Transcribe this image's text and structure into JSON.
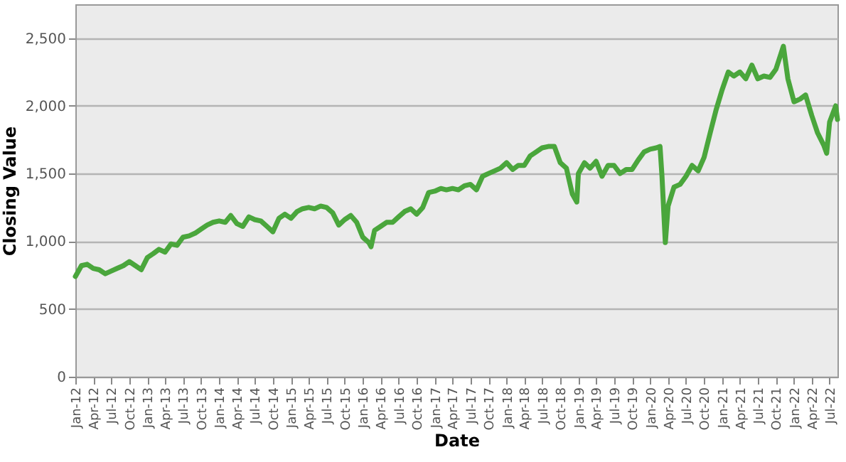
{
  "chart_data": {
    "type": "line",
    "xlabel": "Date",
    "ylabel": "Closing Value",
    "x": [
      "2012-01-01",
      "2012-02-01",
      "2012-03-01",
      "2012-04-01",
      "2012-05-01",
      "2012-06-01",
      "2012-07-01",
      "2012-08-01",
      "2012-09-01",
      "2012-10-01",
      "2012-11-01",
      "2012-12-01",
      "2013-01-01",
      "2013-02-01",
      "2013-03-01",
      "2013-04-01",
      "2013-05-01",
      "2013-06-01",
      "2013-07-01",
      "2013-08-01",
      "2013-09-01",
      "2013-10-01",
      "2013-11-01",
      "2013-12-01",
      "2014-01-01",
      "2014-02-01",
      "2014-03-01",
      "2014-04-01",
      "2014-05-01",
      "2014-06-01",
      "2014-07-01",
      "2014-08-01",
      "2014-09-01",
      "2014-10-01",
      "2014-11-01",
      "2014-12-01",
      "2015-01-01",
      "2015-02-01",
      "2015-03-01",
      "2015-04-01",
      "2015-05-01",
      "2015-06-01",
      "2015-07-01",
      "2015-08-01",
      "2015-09-01",
      "2015-10-01",
      "2015-11-01",
      "2015-12-01",
      "2016-01-01",
      "2016-02-01",
      "2016-02-12",
      "2016-03-01",
      "2016-04-01",
      "2016-05-01",
      "2016-06-01",
      "2016-07-01",
      "2016-08-01",
      "2016-09-01",
      "2016-10-01",
      "2016-11-01",
      "2016-12-01",
      "2017-01-01",
      "2017-02-01",
      "2017-03-01",
      "2017-04-01",
      "2017-05-01",
      "2017-06-01",
      "2017-07-01",
      "2017-08-01",
      "2017-09-01",
      "2017-10-01",
      "2017-11-01",
      "2017-12-01",
      "2018-01-01",
      "2018-02-01",
      "2018-03-01",
      "2018-04-01",
      "2018-05-01",
      "2018-06-01",
      "2018-07-01",
      "2018-08-01",
      "2018-09-01",
      "2018-10-01",
      "2018-11-01",
      "2018-12-01",
      "2018-12-24",
      "2019-01-01",
      "2019-02-01",
      "2019-03-01",
      "2019-04-01",
      "2019-05-01",
      "2019-06-01",
      "2019-07-01",
      "2019-08-01",
      "2019-09-01",
      "2019-10-01",
      "2019-11-01",
      "2019-12-01",
      "2020-01-01",
      "2020-02-01",
      "2020-02-20",
      "2020-03-01",
      "2020-03-18",
      "2020-04-01",
      "2020-05-01",
      "2020-06-01",
      "2020-07-01",
      "2020-08-01",
      "2020-09-01",
      "2020-10-01",
      "2020-11-01",
      "2020-12-01",
      "2021-01-01",
      "2021-02-01",
      "2021-03-01",
      "2021-04-01",
      "2021-05-01",
      "2021-06-01",
      "2021-07-01",
      "2021-08-01",
      "2021-09-01",
      "2021-10-01",
      "2021-11-08",
      "2021-12-01",
      "2022-01-01",
      "2022-02-01",
      "2022-03-01",
      "2022-04-01",
      "2022-05-01",
      "2022-06-01",
      "2022-06-16",
      "2022-07-01",
      "2022-08-01",
      "2022-08-10"
    ],
    "series": [
      {
        "color": "#4aa63c",
        "values": [
          740,
          820,
          830,
          800,
          790,
          760,
          780,
          800,
          820,
          850,
          820,
          790,
          880,
          910,
          940,
          920,
          980,
          970,
          1030,
          1040,
          1060,
          1090,
          1120,
          1140,
          1150,
          1140,
          1190,
          1130,
          1110,
          1180,
          1160,
          1150,
          1110,
          1070,
          1170,
          1200,
          1170,
          1220,
          1240,
          1250,
          1240,
          1260,
          1250,
          1210,
          1120,
          1160,
          1190,
          1140,
          1030,
          990,
          960,
          1080,
          1110,
          1140,
          1140,
          1180,
          1220,
          1240,
          1200,
          1250,
          1360,
          1370,
          1390,
          1380,
          1390,
          1380,
          1410,
          1420,
          1380,
          1480,
          1500,
          1520,
          1540,
          1580,
          1530,
          1560,
          1560,
          1630,
          1660,
          1690,
          1700,
          1700,
          1580,
          1540,
          1350,
          1290,
          1500,
          1580,
          1540,
          1590,
          1480,
          1560,
          1560,
          1500,
          1530,
          1530,
          1600,
          1660,
          1680,
          1690,
          1700,
          1480,
          990,
          1260,
          1400,
          1420,
          1480,
          1560,
          1520,
          1620,
          1800,
          1970,
          2120,
          2250,
          2220,
          2250,
          2200,
          2300,
          2200,
          2220,
          2210,
          2270,
          2440,
          2200,
          2030,
          2050,
          2080,
          1930,
          1800,
          1710,
          1650,
          1880,
          2000,
          1900
        ]
      }
    ],
    "ylim": [
      0,
      2750
    ],
    "yticks": [
      {
        "value": 0,
        "label": "0"
      },
      {
        "value": 500,
        "label": "500"
      },
      {
        "value": 1000,
        "label": "1,000"
      },
      {
        "value": 1500,
        "label": "1,500"
      },
      {
        "value": 2000,
        "label": "2,000"
      },
      {
        "value": 2500,
        "label": "2,500"
      }
    ],
    "xlim": [
      "2012-01-01",
      "2022-08-10"
    ],
    "xticks": [
      {
        "value": "2012-01-01",
        "label": "Jan-12"
      },
      {
        "value": "2012-04-01",
        "label": "Apr-12"
      },
      {
        "value": "2012-07-01",
        "label": "Jul-12"
      },
      {
        "value": "2012-10-01",
        "label": "Oct-12"
      },
      {
        "value": "2013-01-01",
        "label": "Jan-13"
      },
      {
        "value": "2013-04-01",
        "label": "Apr-13"
      },
      {
        "value": "2013-07-01",
        "label": "Jul-13"
      },
      {
        "value": "2013-10-01",
        "label": "Oct-13"
      },
      {
        "value": "2014-01-01",
        "label": "Jan-14"
      },
      {
        "value": "2014-04-01",
        "label": "Apr-14"
      },
      {
        "value": "2014-07-01",
        "label": "Jul-14"
      },
      {
        "value": "2014-10-01",
        "label": "Oct-14"
      },
      {
        "value": "2015-01-01",
        "label": "Jan-15"
      },
      {
        "value": "2015-04-01",
        "label": "Apr-15"
      },
      {
        "value": "2015-07-01",
        "label": "Jul-15"
      },
      {
        "value": "2015-10-01",
        "label": "Oct-15"
      },
      {
        "value": "2016-01-01",
        "label": "Jan-16"
      },
      {
        "value": "2016-04-01",
        "label": "Apr-16"
      },
      {
        "value": "2016-07-01",
        "label": "Jul-16"
      },
      {
        "value": "2016-10-01",
        "label": "Oct-16"
      },
      {
        "value": "2017-01-01",
        "label": "Jan-17"
      },
      {
        "value": "2017-04-01",
        "label": "Apr-17"
      },
      {
        "value": "2017-07-01",
        "label": "Jul-17"
      },
      {
        "value": "2017-10-01",
        "label": "Oct-17"
      },
      {
        "value": "2018-01-01",
        "label": "Jan-18"
      },
      {
        "value": "2018-04-01",
        "label": "Apr-18"
      },
      {
        "value": "2018-07-01",
        "label": "Jul-18"
      },
      {
        "value": "2018-10-01",
        "label": "Oct-18"
      },
      {
        "value": "2019-01-01",
        "label": "Jan-19"
      },
      {
        "value": "2019-04-01",
        "label": "Apr-19"
      },
      {
        "value": "2019-07-01",
        "label": "Jul-19"
      },
      {
        "value": "2019-10-01",
        "label": "Oct-19"
      },
      {
        "value": "2020-01-01",
        "label": "Jan-20"
      },
      {
        "value": "2020-04-01",
        "label": "Apr-20"
      },
      {
        "value": "2020-07-01",
        "label": "Jul-20"
      },
      {
        "value": "2020-10-01",
        "label": "Oct-20"
      },
      {
        "value": "2021-01-01",
        "label": "Jan-21"
      },
      {
        "value": "2021-04-01",
        "label": "Apr-21"
      },
      {
        "value": "2021-07-01",
        "label": "Jul-21"
      },
      {
        "value": "2021-10-01",
        "label": "Oct-21"
      },
      {
        "value": "2022-01-01",
        "label": "Jan-22"
      },
      {
        "value": "2022-04-01",
        "label": "Apr-22"
      },
      {
        "value": "2022-07-01",
        "label": "Jul-22"
      }
    ],
    "grid": "y",
    "legend": false,
    "marker": "none",
    "line_style": "solid"
  }
}
